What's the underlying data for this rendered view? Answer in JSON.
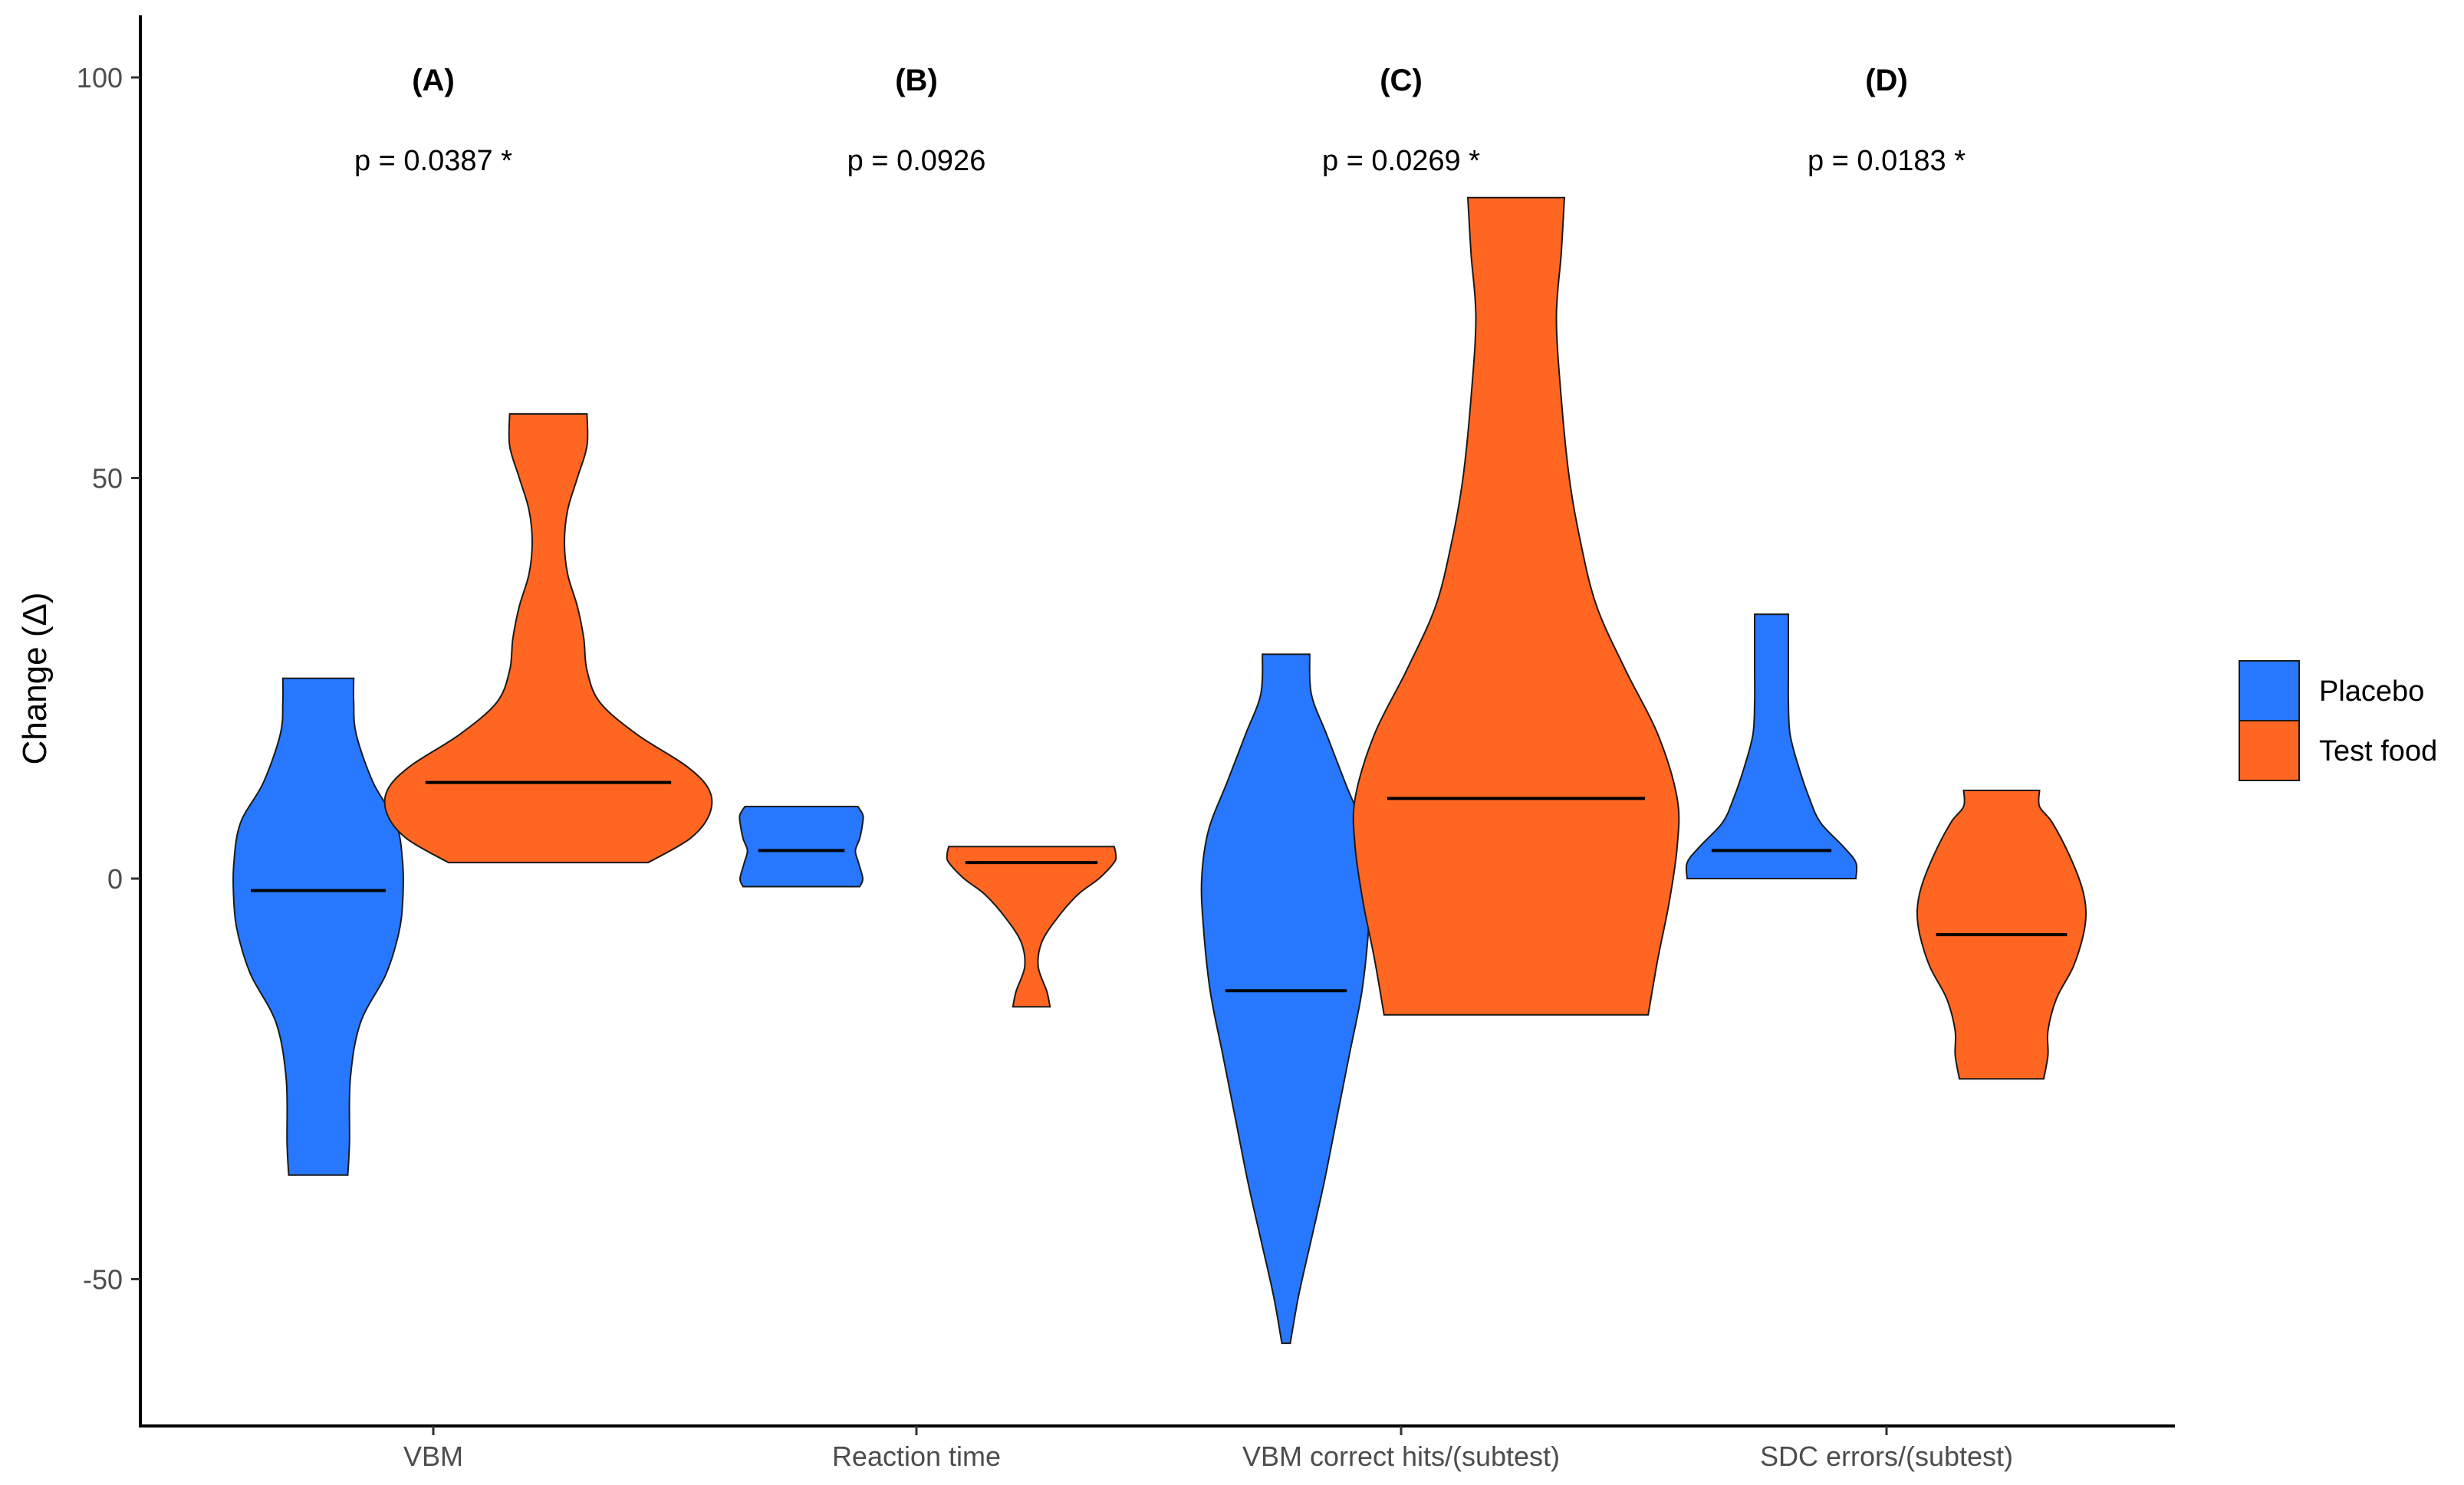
{
  "chart_data": {
    "type": "violin",
    "ylabel": "Change (Δ)",
    "xlabel": "",
    "ylim": [
      -68,
      108
    ],
    "yticks": [
      -50,
      0,
      50,
      100
    ],
    "categories": [
      "VBM",
      "Reaction time",
      "VBM correct hits/(subtest)",
      "SDC errors/(subtest)"
    ],
    "panel_labels": [
      "(A)",
      "(B)",
      "(C)",
      "(D)"
    ],
    "p_values": [
      "p = 0.0387 *",
      "p = 0.0926",
      "p = 0.0269 *",
      "p = 0.0183 *"
    ],
    "legend_position": "right",
    "grid": false,
    "series": [
      {
        "name": "Placebo",
        "color": "#2878FF",
        "violins": [
          {
            "min": -37,
            "max": 25,
            "median": -1.5,
            "profile": [
              [
                -37,
                0.35
              ],
              [
                -33,
                0.37
              ],
              [
                -25,
                0.38
              ],
              [
                -18,
                0.5
              ],
              [
                -12,
                0.8
              ],
              [
                -7,
                0.95
              ],
              [
                -3,
                1.0
              ],
              [
                2,
                1.0
              ],
              [
                7,
                0.92
              ],
              [
                12,
                0.65
              ],
              [
                18,
                0.45
              ],
              [
                22,
                0.42
              ],
              [
                25,
                0.42
              ]
            ]
          },
          {
            "min": -1,
            "max": 9,
            "median": 3.5,
            "profile": [
              [
                -1,
                0.95
              ],
              [
                0,
                1.0
              ],
              [
                2,
                0.93
              ],
              [
                3.5,
                0.88
              ],
              [
                5,
                0.95
              ],
              [
                7,
                1.0
              ],
              [
                8,
                1.0
              ],
              [
                9,
                0.92
              ]
            ]
          },
          {
            "min": -58,
            "max": 28,
            "median": -14,
            "profile": [
              [
                -58,
                0.05
              ],
              [
                -52,
                0.15
              ],
              [
                -45,
                0.3
              ],
              [
                -38,
                0.45
              ],
              [
                -30,
                0.6
              ],
              [
                -22,
                0.75
              ],
              [
                -14,
                0.9
              ],
              [
                -6,
                0.98
              ],
              [
                0,
                1.0
              ],
              [
                6,
                0.92
              ],
              [
                12,
                0.7
              ],
              [
                18,
                0.48
              ],
              [
                23,
                0.3
              ],
              [
                28,
                0.28
              ]
            ]
          },
          {
            "min": 0,
            "max": 33,
            "median": 3.5,
            "profile": [
              [
                0,
                1.0
              ],
              [
                2,
                1.0
              ],
              [
                4,
                0.85
              ],
              [
                7,
                0.58
              ],
              [
                10,
                0.45
              ],
              [
                14,
                0.32
              ],
              [
                18,
                0.22
              ],
              [
                22,
                0.2
              ],
              [
                26,
                0.2
              ],
              [
                30,
                0.2
              ],
              [
                33,
                0.2
              ]
            ]
          }
        ]
      },
      {
        "name": "Test food",
        "color": "#FF6622",
        "violins": [
          {
            "min": 2,
            "max": 58,
            "median": 12,
            "profile": [
              [
                2,
                0.62
              ],
              [
                5,
                0.88
              ],
              [
                8,
                1.0
              ],
              [
                11,
                1.0
              ],
              [
                14,
                0.86
              ],
              [
                18,
                0.55
              ],
              [
                22,
                0.32
              ],
              [
                26,
                0.24
              ],
              [
                30,
                0.22
              ],
              [
                34,
                0.18
              ],
              [
                38,
                0.12
              ],
              [
                42,
                0.1
              ],
              [
                46,
                0.12
              ],
              [
                50,
                0.18
              ],
              [
                54,
                0.24
              ],
              [
                58,
                0.24
              ]
            ]
          },
          {
            "min": -16,
            "max": 4,
            "median": 2,
            "profile": [
              [
                -16,
                0.22
              ],
              [
                -14,
                0.18
              ],
              [
                -11,
                0.08
              ],
              [
                -8,
                0.12
              ],
              [
                -5,
                0.3
              ],
              [
                -2,
                0.55
              ],
              [
                0,
                0.8
              ],
              [
                2,
                0.98
              ],
              [
                3,
                1.0
              ],
              [
                4,
                0.98
              ]
            ]
          },
          {
            "min": -17,
            "max": 85,
            "median": 10,
            "profile": [
              [
                -17,
                0.82
              ],
              [
                -10,
                0.88
              ],
              [
                -3,
                0.95
              ],
              [
                4,
                1.0
              ],
              [
                10,
                1.0
              ],
              [
                18,
                0.88
              ],
              [
                26,
                0.68
              ],
              [
                34,
                0.5
              ],
              [
                42,
                0.4
              ],
              [
                50,
                0.33
              ],
              [
                60,
                0.28
              ],
              [
                70,
                0.25
              ],
              [
                78,
                0.28
              ],
              [
                85,
                0.3
              ]
            ]
          },
          {
            "min": -25,
            "max": 11,
            "median": -7,
            "profile": [
              [
                -25,
                0.5
              ],
              [
                -22,
                0.55
              ],
              [
                -19,
                0.55
              ],
              [
                -15,
                0.65
              ],
              [
                -11,
                0.85
              ],
              [
                -7,
                0.97
              ],
              [
                -4,
                1.0
              ],
              [
                -1,
                0.95
              ],
              [
                3,
                0.8
              ],
              [
                7,
                0.6
              ],
              [
                9,
                0.45
              ],
              [
                11,
                0.45
              ]
            ]
          }
        ]
      }
    ]
  }
}
